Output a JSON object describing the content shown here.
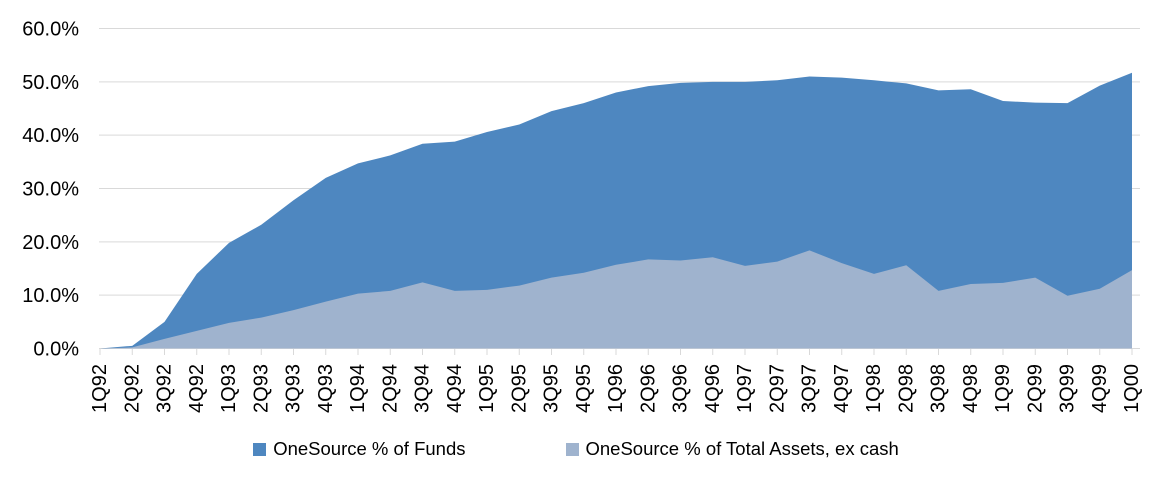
{
  "chart_data": {
    "type": "area",
    "mode": "overlapping",
    "title": "",
    "xlabel": "",
    "ylabel": "",
    "categories": [
      "1Q92",
      "2Q92",
      "3Q92",
      "4Q92",
      "1Q93",
      "2Q93",
      "3Q93",
      "4Q93",
      "1Q94",
      "2Q94",
      "3Q94",
      "4Q94",
      "1Q95",
      "2Q95",
      "3Q95",
      "4Q95",
      "1Q96",
      "2Q96",
      "3Q96",
      "4Q96",
      "1Q97",
      "2Q97",
      "3Q97",
      "4Q97",
      "1Q98",
      "2Q98",
      "3Q98",
      "4Q98",
      "1Q99",
      "2Q99",
      "3Q99",
      "4Q99",
      "1Q00"
    ],
    "series": [
      {
        "name": "OneSource % of Funds",
        "color": "#4e87c0",
        "values": [
          0,
          0.5,
          5,
          14,
          19.8,
          23.2,
          27.8,
          32,
          34.7,
          36.2,
          38.4,
          38.8,
          40.6,
          42,
          44.5,
          46,
          48,
          49.2,
          49.8,
          50,
          50,
          50.3,
          51,
          50.8,
          50.3,
          49.7,
          48.4,
          48.6,
          46.4,
          46.1,
          46,
          49.3,
          51.7
        ]
      },
      {
        "name": "OneSource % of Total Assets, ex cash",
        "color": "#9fb3ce",
        "values": [
          0,
          0.2,
          1.8,
          3.3,
          4.8,
          5.8,
          7.2,
          8.8,
          10.3,
          10.8,
          12.4,
          10.8,
          11,
          11.8,
          13.3,
          14.2,
          15.7,
          16.7,
          16.5,
          17.1,
          15.5,
          16.3,
          18.4,
          16,
          14,
          15.6,
          10.8,
          12.1,
          12.3,
          13.3,
          9.9,
          11.2,
          14.7
        ]
      }
    ],
    "ylim": [
      0,
      60
    ],
    "ytick_step": 10,
    "ytick_labels": [
      "0.0%",
      "10.0%",
      "20.0%",
      "30.0%",
      "40.0%",
      "50.0%",
      "60.0%"
    ],
    "grid": true,
    "gridline_color": "#d9d9d9",
    "axis_color": "#d9d9d9",
    "text_color": "#000000",
    "legend_position": "bottom"
  },
  "legend": {
    "funds_label": "OneSource % of Funds",
    "assets_label": "OneSource % of Total Assets, ex cash"
  }
}
